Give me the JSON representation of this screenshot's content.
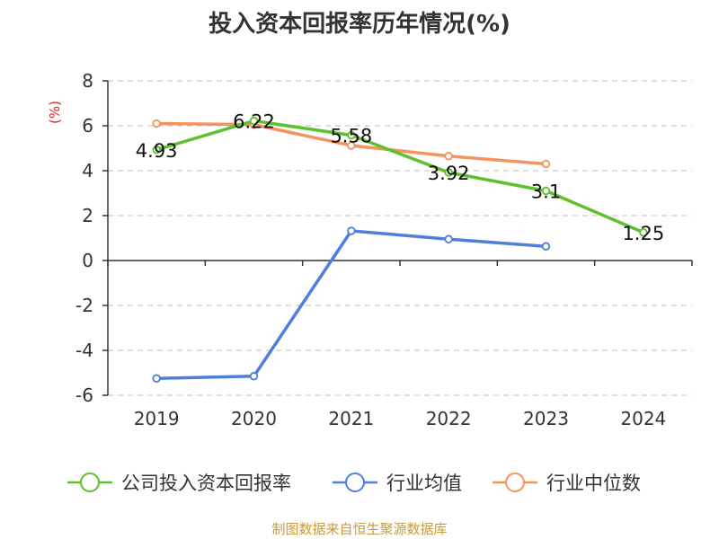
{
  "chart_data": {
    "type": "line",
    "title": "投入资本回报率历年情况(%)",
    "ylabel": "(%)",
    "categories": [
      "2019",
      "2020",
      "2021",
      "2022",
      "2023",
      "2024"
    ],
    "ylim": [
      -6,
      8
    ],
    "yticks": [
      8,
      6,
      4,
      2,
      0,
      -2,
      -4,
      -6
    ],
    "grid": true,
    "legend_position": "bottom",
    "series": [
      {
        "name": "公司投入资本回报率",
        "color": "#5dc12e",
        "values": [
          4.93,
          6.22,
          5.58,
          3.92,
          3.1,
          1.25
        ],
        "labels": [
          "4.93",
          "6.22",
          "5.58",
          "3.92",
          "3.1",
          "1.25"
        ]
      },
      {
        "name": "行业均值",
        "color": "#4f7fdb",
        "values": [
          -5.25,
          -5.15,
          1.32,
          0.95,
          0.63,
          null
        ]
      },
      {
        "name": "行业中位数",
        "color": "#f4935e",
        "values": [
          6.1,
          6.05,
          5.12,
          4.65,
          4.3,
          null
        ]
      }
    ]
  },
  "source": {
    "text": "制图数据来自恒生聚源数据库",
    "color": "#c89a3c"
  },
  "colors": {
    "ylabel": "#e02020",
    "axis": "#333333",
    "grid": "#cccccc"
  }
}
